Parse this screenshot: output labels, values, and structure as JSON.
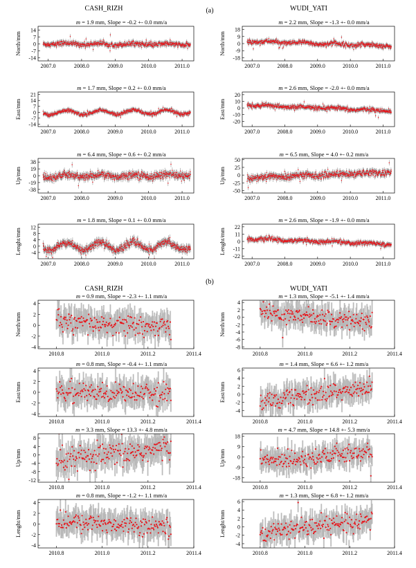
{
  "figure": {
    "panel_a_label": "(a)",
    "panel_b_label": "(b)",
    "colors": {
      "points": "#e8141a",
      "error_bars": "#8c8c8c",
      "error_fill": "#d4d4d4",
      "axis": "#000000",
      "dense_band": "#3a3a3a"
    }
  },
  "panel_a": {
    "station_left": "CASH_RIZH",
    "station_right": "WUDI_YATI",
    "x_ticks": [
      "2007.0",
      "2008.0",
      "2009.0",
      "2010.0",
      "2011.0"
    ]
  },
  "panel_b": {
    "station_left": "CASH_RIZH",
    "station_right": "WUDI_YATI",
    "x_ticks": [
      "2010.8",
      "2011.0",
      "2011.2",
      "2011.4"
    ]
  },
  "chart_data": [
    {
      "type": "scatter",
      "panel": "a",
      "station": "CASH_RIZH",
      "component": "North",
      "ylabel": "North/mm",
      "m": "1.9",
      "slope": "-0.2",
      "err": "0.0",
      "xlim": [
        2006.7,
        2011.35
      ],
      "ylim": [
        -17,
        18
      ],
      "yticks": [
        "14",
        "7",
        "0",
        "-7",
        "-14"
      ],
      "ytick_values": [
        14,
        7,
        0,
        -7,
        -14
      ],
      "x_start": 2006.85,
      "x_end": 2011.25,
      "trend": -0.2,
      "amp": 0.8,
      "noise": 1.2,
      "err_bar": 2.2
    },
    {
      "type": "scatter",
      "panel": "a",
      "station": "WUDI_YATI",
      "component": "North",
      "ylabel": "North/mm",
      "m": "2.2",
      "slope": "-1.3",
      "err": "0.0",
      "xlim": [
        2006.7,
        2011.35
      ],
      "ylim": [
        -22,
        22
      ],
      "yticks": [
        "18",
        "9",
        "0",
        "-9",
        "-18"
      ],
      "ytick_values": [
        18,
        9,
        0,
        -9,
        -18
      ],
      "x_start": 2006.85,
      "x_end": 2011.25,
      "trend": -1.3,
      "amp": 1.0,
      "noise": 1.5,
      "err_bar": 2.5
    },
    {
      "type": "scatter",
      "panel": "a",
      "station": "CASH_RIZH",
      "component": "East",
      "ylabel": "East/mm",
      "m": "1.7",
      "slope": "0.2",
      "err": "0.0",
      "xlim": [
        2006.7,
        2011.35
      ],
      "ylim": [
        -17,
        24
      ],
      "yticks": [
        "21",
        "14",
        "7",
        "0",
        "-7",
        "-14"
      ],
      "ytick_values": [
        21,
        14,
        7,
        0,
        -7,
        -14
      ],
      "x_start": 2006.85,
      "x_end": 2011.25,
      "trend": 0.2,
      "amp": 2.5,
      "noise": 1.1,
      "err_bar": 2.2
    },
    {
      "type": "scatter",
      "panel": "a",
      "station": "WUDI_YATI",
      "component": "East",
      "ylabel": "East/mm",
      "m": "2.6",
      "slope": "-2.0",
      "err": "0.0",
      "xlim": [
        2006.7,
        2011.35
      ],
      "ylim": [
        -28,
        24
      ],
      "yticks": [
        "20",
        "10",
        "0",
        "-10",
        "-20"
      ],
      "ytick_values": [
        20,
        10,
        0,
        -10,
        -20
      ],
      "x_start": 2006.85,
      "x_end": 2011.25,
      "trend": -2.0,
      "amp": 1.0,
      "noise": 1.6,
      "err_bar": 3.0
    },
    {
      "type": "scatter",
      "panel": "a",
      "station": "CASH_RIZH",
      "component": "Up",
      "ylabel": "Up/mm",
      "m": "6.4",
      "slope": "0.6",
      "err": "0.2",
      "xlim": [
        2006.7,
        2011.35
      ],
      "ylim": [
        -48,
        48
      ],
      "yticks": [
        "38",
        "19",
        "0",
        "-19",
        "-38"
      ],
      "ytick_values": [
        38,
        19,
        0,
        -19,
        -38
      ],
      "x_start": 2006.85,
      "x_end": 2011.25,
      "trend": 0.6,
      "amp": 3.0,
      "noise": 5.0,
      "err_bar": 8.0
    },
    {
      "type": "scatter",
      "panel": "a",
      "station": "WUDI_YATI",
      "component": "Up",
      "ylabel": "Up/mm",
      "m": "6.5",
      "slope": "4.0",
      "err": "0.2",
      "xlim": [
        2006.7,
        2011.35
      ],
      "ylim": [
        -58,
        54
      ],
      "yticks": [
        "50",
        "25",
        "0",
        "-25",
        "-50"
      ],
      "ytick_values": [
        50,
        25,
        0,
        -25,
        -50
      ],
      "x_start": 2006.85,
      "x_end": 2011.25,
      "trend": 4.0,
      "amp": 2.0,
      "noise": 5.2,
      "err_bar": 8.5
    },
    {
      "type": "scatter",
      "panel": "a",
      "station": "CASH_RIZH",
      "component": "Lenght",
      "ylabel": "Lenght/mm",
      "m": "1.8",
      "slope": "0.1",
      "err": "0.0",
      "xlim": [
        2006.7,
        2011.35
      ],
      "ylim": [
        -8,
        14
      ],
      "yticks": [
        "12",
        "8",
        "4",
        "0",
        "-4"
      ],
      "ytick_values": [
        12,
        8,
        4,
        0,
        -4
      ],
      "x_start": 2006.85,
      "x_end": 2011.25,
      "trend": 0.1,
      "amp": 2.5,
      "noise": 1.1,
      "err_bar": 2.0
    },
    {
      "type": "scatter",
      "panel": "a",
      "station": "WUDI_YATI",
      "component": "Lenght",
      "ylabel": "Lenght/mm",
      "m": "2.6",
      "slope": "-1.9",
      "err": "0.0",
      "xlim": [
        2006.7,
        2011.35
      ],
      "ylim": [
        -26,
        26
      ],
      "yticks": [
        "22",
        "11",
        "0",
        "-11",
        "-22"
      ],
      "ytick_values": [
        22,
        11,
        0,
        -11,
        -22
      ],
      "x_start": 2006.85,
      "x_end": 2011.25,
      "trend": -1.9,
      "amp": 1.0,
      "noise": 1.6,
      "err_bar": 3.0
    },
    {
      "type": "scatter",
      "panel": "b",
      "station": "CASH_RIZH",
      "component": "North",
      "ylabel": "North/mm",
      "m": "0.9",
      "slope": "-2.3",
      "err": "1.1",
      "xlim": [
        2010.72,
        2011.4
      ],
      "ylim": [
        -4.3,
        4.6
      ],
      "yticks": [
        "4",
        "2",
        "0",
        "-2",
        "-4"
      ],
      "ytick_values": [
        4,
        2,
        0,
        -2,
        -4
      ],
      "x_start": 2010.8,
      "x_end": 2011.3,
      "trend": -2.3,
      "amp": 0.0,
      "noise": 0.9,
      "err_bar": 2.0
    },
    {
      "type": "scatter",
      "panel": "b",
      "station": "WUDI_YATI",
      "component": "North",
      "ylabel": "North/mm",
      "m": "1.3",
      "slope": "-5.1",
      "err": "1.4",
      "xlim": [
        2010.72,
        2011.4
      ],
      "ylim": [
        -8.5,
        4.6
      ],
      "yticks": [
        "4",
        "2",
        "0",
        "-2",
        "-4",
        "-6",
        "-8"
      ],
      "ytick_values": [
        4,
        2,
        0,
        -2,
        -4,
        -6,
        -8
      ],
      "x_start": 2010.8,
      "x_end": 2011.3,
      "trend": -5.1,
      "amp": 0.0,
      "noise": 1.2,
      "err_bar": 2.6
    },
    {
      "type": "scatter",
      "panel": "b",
      "station": "CASH_RIZH",
      "component": "East",
      "ylabel": "East/mm",
      "m": "0.8",
      "slope": "-0.4",
      "err": "1.1",
      "xlim": [
        2010.72,
        2011.4
      ],
      "ylim": [
        -4.5,
        4.5
      ],
      "yticks": [
        "4",
        "2",
        "0",
        "-2",
        "-4"
      ],
      "ytick_values": [
        4,
        2,
        0,
        -2,
        -4
      ],
      "x_start": 2010.8,
      "x_end": 2011.3,
      "trend": -0.4,
      "amp": 0.0,
      "noise": 0.85,
      "err_bar": 2.0
    },
    {
      "type": "scatter",
      "panel": "b",
      "station": "WUDI_YATI",
      "component": "East",
      "ylabel": "East/mm",
      "m": "1.4",
      "slope": "6.6",
      "err": "1.2",
      "xlim": [
        2010.72,
        2011.4
      ],
      "ylim": [
        -5.5,
        6.5
      ],
      "yticks": [
        "6",
        "4",
        "2",
        "0",
        "-2",
        "-4"
      ],
      "ytick_values": [
        6,
        4,
        2,
        0,
        -2,
        -4
      ],
      "x_start": 2010.8,
      "x_end": 2011.3,
      "trend": 6.6,
      "amp": 0.0,
      "noise": 1.2,
      "err_bar": 2.4
    },
    {
      "type": "scatter",
      "panel": "b",
      "station": "CASH_RIZH",
      "component": "Up",
      "ylabel": "Up/mm",
      "m": "3.3",
      "slope": "13.3",
      "err": "4.8",
      "xlim": [
        2010.72,
        2011.4
      ],
      "ylim": [
        -13,
        10
      ],
      "yticks": [
        "8",
        "4",
        "0",
        "-4",
        "-8",
        "-12"
      ],
      "ytick_values": [
        8,
        4,
        0,
        -4,
        -8,
        -12
      ],
      "x_start": 2010.8,
      "x_end": 2011.3,
      "trend": 13.3,
      "amp": 0.0,
      "noise": 3.0,
      "err_bar": 5.5
    },
    {
      "type": "scatter",
      "panel": "b",
      "station": "WUDI_YATI",
      "component": "Up",
      "ylabel": "Up/mm",
      "m": "4.7",
      "slope": "14.8",
      "err": "5.3",
      "xlim": [
        2010.72,
        2011.4
      ],
      "ylim": [
        -22,
        20
      ],
      "yticks": [
        "18",
        "9",
        "0",
        "-9",
        "-18"
      ],
      "ytick_values": [
        18,
        9,
        0,
        -9,
        -18
      ],
      "x_start": 2010.8,
      "x_end": 2011.3,
      "trend": 14.8,
      "amp": 0.0,
      "noise": 4.0,
      "err_bar": 8.0
    },
    {
      "type": "scatter",
      "panel": "b",
      "station": "CASH_RIZH",
      "component": "Lenght",
      "ylabel": "Lenght/mm",
      "m": "0.8",
      "slope": "-1.2",
      "err": "1.1",
      "xlim": [
        2010.72,
        2011.4
      ],
      "ylim": [
        -4.5,
        4.6
      ],
      "yticks": [
        "4",
        "2",
        "0",
        "-2",
        "-4"
      ],
      "ytick_values": [
        4,
        2,
        0,
        -2,
        -4
      ],
      "x_start": 2010.8,
      "x_end": 2011.3,
      "trend": -1.2,
      "amp": 0.0,
      "noise": 0.85,
      "err_bar": 2.0
    },
    {
      "type": "scatter",
      "panel": "b",
      "station": "WUDI_YATI",
      "component": "Lenght",
      "ylabel": "Lenght/mm",
      "m": "1.3",
      "slope": "6.8",
      "err": "1.2",
      "xlim": [
        2010.72,
        2011.4
      ],
      "ylim": [
        -5,
        6.5
      ],
      "yticks": [
        "6",
        "4",
        "2",
        "0",
        "-2",
        "-4"
      ],
      "ytick_values": [
        6,
        4,
        2,
        0,
        -2,
        -4
      ],
      "x_start": 2010.8,
      "x_end": 2011.3,
      "trend": 6.8,
      "amp": 0.0,
      "noise": 1.1,
      "err_bar": 2.3
    }
  ]
}
